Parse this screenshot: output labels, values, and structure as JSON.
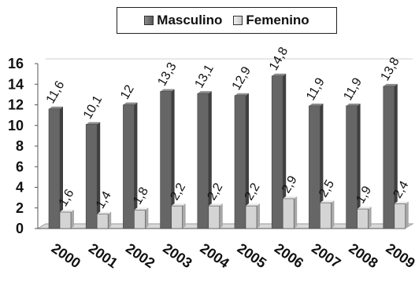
{
  "chart_data": {
    "type": "bar",
    "categories": [
      "2000",
      "2001",
      "2002",
      "2003",
      "2004",
      "2005",
      "2006",
      "2007",
      "2008",
      "2009"
    ],
    "series": [
      {
        "name": "Masculino",
        "values": [
          11.6,
          10.1,
          12,
          13.3,
          13.1,
          12.9,
          14.8,
          11.9,
          11.9,
          13.8
        ],
        "labels": [
          "11,6",
          "10,1",
          "12",
          "13,3",
          "13,1",
          "12,9",
          "14,8",
          "11,9",
          "11,9",
          "13,8"
        ]
      },
      {
        "name": "Femenino",
        "values": [
          1.6,
          1.4,
          1.8,
          2.2,
          2.2,
          2.2,
          2.9,
          2.5,
          1.9,
          2.4
        ],
        "labels": [
          "1,6",
          "1,4",
          "1,8",
          "2,2",
          "2,2",
          "2,2",
          "2,9",
          "2,5",
          "1,9",
          "2,4"
        ]
      }
    ],
    "y_ticks": [
      "0",
      "2",
      "4",
      "6",
      "8",
      "10",
      "12",
      "14",
      "16"
    ],
    "ylim": [
      0,
      16
    ],
    "grid": false,
    "legend_position": "top"
  },
  "colors": {
    "masculino": "#666666",
    "femenino": "#d4d4d4"
  }
}
